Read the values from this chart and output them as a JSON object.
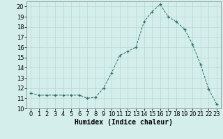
{
  "x": [
    0,
    1,
    2,
    3,
    4,
    5,
    6,
    7,
    8,
    9,
    10,
    11,
    12,
    13,
    14,
    15,
    16,
    17,
    18,
    19,
    20,
    21,
    22,
    23
  ],
  "y": [
    11.5,
    11.3,
    11.3,
    11.3,
    11.3,
    11.3,
    11.3,
    11.0,
    11.1,
    12.0,
    13.5,
    15.2,
    15.6,
    16.0,
    18.5,
    19.5,
    20.2,
    19.0,
    18.5,
    17.8,
    16.3,
    14.3,
    11.9,
    10.4
  ],
  "line_color": "#2e6e65",
  "marker": "+",
  "bg_color": "#d4eeeb",
  "grid_color": "#b8d8d4",
  "xlabel": "Humidex (Indice chaleur)",
  "xlabel_fontsize": 7,
  "tick_fontsize": 6,
  "ylim": [
    10,
    20.5
  ],
  "xlim": [
    -0.5,
    23.5
  ],
  "yticks": [
    10,
    11,
    12,
    13,
    14,
    15,
    16,
    17,
    18,
    19,
    20
  ],
  "xticks": [
    0,
    1,
    2,
    3,
    4,
    5,
    6,
    7,
    8,
    9,
    10,
    11,
    12,
    13,
    14,
    15,
    16,
    17,
    18,
    19,
    20,
    21,
    22,
    23
  ]
}
